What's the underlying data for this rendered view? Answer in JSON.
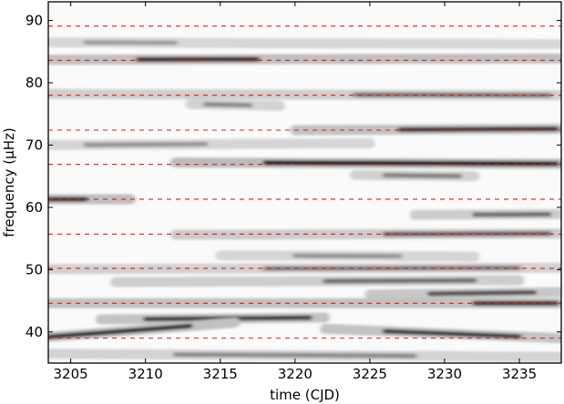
{
  "chart_data": {
    "type": "heatmap",
    "title": "",
    "xlabel": "time (CJD)",
    "ylabel": "frequency (μHz)",
    "xlim": [
      3203.5,
      3237.8
    ],
    "ylim": [
      35,
      93
    ],
    "x_ticks": [
      3205,
      3210,
      3215,
      3220,
      3225,
      3230,
      3235
    ],
    "y_ticks": [
      40,
      50,
      60,
      70,
      80,
      90
    ],
    "colormap": "grayscale (white = low, black = high)",
    "reference_lines": {
      "style": "dashed",
      "color": "#e31a1c",
      "frequencies": [
        39.0,
        44.6,
        50.2,
        55.7,
        61.3,
        66.9,
        72.4,
        78.0,
        83.6,
        89.1
      ]
    },
    "ridges": [
      {
        "y_start": 83.7,
        "y_end": 83.9,
        "x_start": 3203.5,
        "x_end": 3237.8,
        "peak_start": 3209.5,
        "peak_end": 3217.5,
        "strength": 0.85
      },
      {
        "y_start": 78.2,
        "y_end": 78.0,
        "x_start": 3203.5,
        "x_end": 3237.8,
        "peak_start": 3224.0,
        "peak_end": 3237.0,
        "strength": 0.45
      },
      {
        "y_start": 76.6,
        "y_end": 76.3,
        "x_start": 3213.0,
        "x_end": 3219.0,
        "peak_start": 3214.0,
        "peak_end": 3217.0,
        "strength": 0.35
      },
      {
        "y_start": 72.4,
        "y_end": 72.6,
        "x_start": 3220.0,
        "x_end": 3237.8,
        "peak_start": 3227.0,
        "peak_end": 3237.5,
        "strength": 0.8
      },
      {
        "y_start": 67.2,
        "y_end": 67.0,
        "x_start": 3212.0,
        "x_end": 3237.8,
        "peak_start": 3218.0,
        "peak_end": 3237.5,
        "strength": 0.95
      },
      {
        "y_start": 65.2,
        "y_end": 65.0,
        "x_start": 3224.0,
        "x_end": 3232.0,
        "peak_start": 3226.0,
        "peak_end": 3231.0,
        "strength": 0.4
      },
      {
        "y_start": 61.3,
        "y_end": 61.3,
        "x_start": 3203.5,
        "x_end": 3209.0,
        "peak_start": 3203.5,
        "peak_end": 3206.0,
        "strength": 0.85
      },
      {
        "y_start": 58.8,
        "y_end": 58.9,
        "x_start": 3228.0,
        "x_end": 3237.8,
        "peak_start": 3232.0,
        "peak_end": 3237.0,
        "strength": 0.5
      },
      {
        "y_start": 55.6,
        "y_end": 55.8,
        "x_start": 3212.0,
        "x_end": 3237.8,
        "peak_start": 3226.0,
        "peak_end": 3237.0,
        "strength": 0.55
      },
      {
        "y_start": 52.3,
        "y_end": 52.1,
        "x_start": 3215.0,
        "x_end": 3232.0,
        "peak_start": 3220.0,
        "peak_end": 3227.0,
        "strength": 0.3
      },
      {
        "y_start": 50.1,
        "y_end": 50.3,
        "x_start": 3203.5,
        "x_end": 3237.8,
        "peak_start": 3218.0,
        "peak_end": 3235.0,
        "strength": 0.4
      },
      {
        "y_start": 48.0,
        "y_end": 48.3,
        "x_start": 3208.0,
        "x_end": 3235.0,
        "peak_start": 3222.0,
        "peak_end": 3232.0,
        "strength": 0.5
      },
      {
        "y_start": 46.0,
        "y_end": 46.4,
        "x_start": 3225.0,
        "x_end": 3237.8,
        "peak_start": 3229.0,
        "peak_end": 3236.0,
        "strength": 0.65
      },
      {
        "y_start": 44.6,
        "y_end": 44.6,
        "x_start": 3203.5,
        "x_end": 3237.8,
        "peak_start": 3232.0,
        "peak_end": 3237.5,
        "strength": 0.8
      },
      {
        "y_start": 42.0,
        "y_end": 42.3,
        "x_start": 3207.0,
        "x_end": 3222.0,
        "peak_start": 3210.0,
        "peak_end": 3221.0,
        "strength": 0.75
      },
      {
        "y_start": 39.2,
        "y_end": 41.5,
        "x_start": 3203.5,
        "x_end": 3216.0,
        "peak_start": 3203.5,
        "peak_end": 3213.0,
        "strength": 0.8
      },
      {
        "y_start": 40.5,
        "y_end": 39.0,
        "x_start": 3222.0,
        "x_end": 3237.8,
        "peak_start": 3226.0,
        "peak_end": 3235.0,
        "strength": 0.75
      },
      {
        "y_start": 36.5,
        "y_end": 36.0,
        "x_start": 3203.5,
        "x_end": 3237.8,
        "peak_start": 3212.0,
        "peak_end": 3228.0,
        "strength": 0.35
      },
      {
        "y_start": 86.5,
        "y_end": 86.2,
        "x_start": 3203.5,
        "x_end": 3237.8,
        "peak_start": 3206.0,
        "peak_end": 3212.0,
        "strength": 0.25
      },
      {
        "y_start": 70.0,
        "y_end": 70.3,
        "x_start": 3203.5,
        "x_end": 3225.0,
        "peak_start": 3206.0,
        "peak_end": 3214.0,
        "strength": 0.3
      }
    ]
  }
}
